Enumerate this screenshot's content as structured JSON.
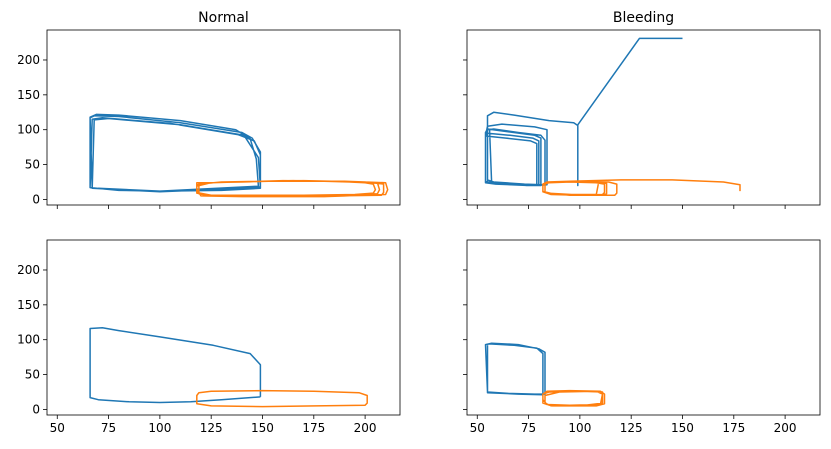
{
  "chart_data": [
    {
      "type": "line",
      "title": "Normal",
      "xlim": [
        45,
        217
      ],
      "ylim": [
        -8,
        243
      ],
      "xticks": [
        50,
        75,
        100,
        125,
        150,
        175,
        200
      ],
      "yticks": [
        0,
        50,
        100,
        150,
        200
      ],
      "show_xtick_labels": false,
      "show_ytick_labels": true,
      "series": [
        {
          "color": "#1f77b4",
          "points": [
            [
              66,
              17
            ],
            [
              66,
              117
            ],
            [
              68,
              120
            ],
            [
              80,
              119
            ],
            [
              110,
              110
            ],
            [
              140,
              96
            ],
            [
              145,
              88
            ],
            [
              149,
              68
            ],
            [
              149,
              16
            ],
            [
              130,
              13
            ],
            [
              100,
              12
            ],
            [
              80,
              13
            ],
            [
              66,
              17
            ],
            [
              67,
              115
            ],
            [
              72,
              117
            ],
            [
              105,
              109
            ],
            [
              138,
              93
            ],
            [
              146,
              84
            ],
            [
              149,
              64
            ],
            [
              149,
              17
            ],
            [
              100,
              11
            ],
            [
              67,
              16
            ],
            [
              68,
              114
            ],
            [
              75,
              116
            ],
            [
              110,
              107
            ],
            [
              141,
              92
            ],
            [
              148,
              60
            ],
            [
              149,
              18
            ],
            [
              100,
              11
            ],
            [
              67,
              16
            ],
            [
              66,
              118
            ],
            [
              69,
              122
            ],
            [
              80,
              121
            ],
            [
              110,
              113
            ],
            [
              137,
              100
            ],
            [
              144,
              87
            ],
            [
              147,
              58
            ],
            [
              148,
              19
            ],
            [
              100,
              12
            ],
            [
              70,
              16
            ]
          ]
        },
        {
          "color": "#ff7f0e",
          "points": [
            [
              118,
              20
            ],
            [
              118,
              24
            ],
            [
              140,
              25
            ],
            [
              165,
              27
            ],
            [
              185,
              26
            ],
            [
              200,
              24
            ],
            [
              204,
              22
            ],
            [
              205,
              14
            ],
            [
              204,
              9
            ],
            [
              195,
              7
            ],
            [
              170,
              6
            ],
            [
              145,
              6
            ],
            [
              125,
              6
            ],
            [
              118,
              10
            ],
            [
              118,
              20
            ],
            [
              120,
              24
            ],
            [
              150,
              26
            ],
            [
              180,
              26
            ],
            [
              206,
              24
            ],
            [
              207,
              14
            ],
            [
              206,
              8
            ],
            [
              190,
              6
            ],
            [
              150,
              5
            ],
            [
              125,
              5
            ],
            [
              119,
              8
            ],
            [
              119,
              22
            ],
            [
              130,
              25
            ],
            [
              170,
              27
            ],
            [
              200,
              25
            ],
            [
              209,
              22
            ],
            [
              209,
              10
            ],
            [
              208,
              6
            ],
            [
              185,
              5
            ],
            [
              150,
              4
            ],
            [
              125,
              5
            ],
            [
              118,
              9
            ],
            [
              118,
              19
            ],
            [
              125,
              24
            ],
            [
              160,
              27
            ],
            [
              190,
              26
            ],
            [
              210,
              24
            ],
            [
              211,
              14
            ],
            [
              210,
              7
            ],
            [
              180,
              4
            ],
            [
              140,
              4
            ],
            [
              120,
              5
            ],
            [
              118,
              15
            ]
          ]
        }
      ]
    },
    {
      "type": "line",
      "title": "Bleeding",
      "xlim": [
        45,
        217
      ],
      "ylim": [
        -8,
        243
      ],
      "xticks": [
        50,
        75,
        100,
        125,
        150,
        175,
        200
      ],
      "yticks": [
        0,
        50,
        100,
        150,
        200
      ],
      "show_xtick_labels": false,
      "show_ytick_labels": false,
      "series": [
        {
          "color": "#1f77b4",
          "points": [
            [
              150,
              231
            ],
            [
              150,
              231
            ],
            [
              129,
              231
            ],
            [
              99,
              107
            ],
            [
              99,
              20
            ],
            [
              99,
              106
            ],
            [
              97,
              110
            ],
            [
              85,
              113
            ],
            [
              68,
              121
            ],
            [
              58,
              125
            ],
            [
              55,
              120
            ],
            [
              55,
              28
            ],
            [
              58,
              25
            ],
            [
              73,
              22
            ],
            [
              82,
              21
            ],
            [
              83,
              22
            ],
            [
              83,
              85
            ],
            [
              81,
              92
            ],
            [
              70,
              96
            ],
            [
              58,
              101
            ],
            [
              55,
              100
            ],
            [
              55,
              25
            ],
            [
              60,
              24
            ],
            [
              74,
              20
            ],
            [
              81,
              20
            ],
            [
              81,
              88
            ],
            [
              78,
              92
            ],
            [
              65,
              97
            ],
            [
              55,
              101
            ],
            [
              54,
              96
            ],
            [
              54,
              26
            ],
            [
              57,
              23
            ],
            [
              72,
              21
            ],
            [
              80,
              20
            ],
            [
              80,
              84
            ],
            [
              77,
              88
            ],
            [
              66,
              92
            ],
            [
              55,
              95
            ],
            [
              54,
              92
            ],
            [
              54,
              24
            ],
            [
              59,
              22
            ],
            [
              75,
              20
            ],
            [
              79,
              20
            ],
            [
              79,
              80
            ],
            [
              76,
              84
            ],
            [
              64,
              88
            ],
            [
              54,
              91
            ],
            [
              55,
              105
            ],
            [
              62,
              108
            ],
            [
              78,
              104
            ],
            [
              84,
              100
            ],
            [
              84,
              21
            ],
            [
              79,
              20
            ],
            [
              57,
              25
            ],
            [
              56,
              99
            ]
          ]
        },
        {
          "color": "#ff7f0e",
          "points": [
            [
              178,
              12
            ],
            [
              178,
              21
            ],
            [
              170,
              25
            ],
            [
              145,
              28
            ],
            [
              120,
              28
            ],
            [
              95,
              26
            ],
            [
              84,
              25
            ],
            [
              82,
              22
            ],
            [
              82,
              12
            ],
            [
              85,
              8
            ],
            [
              95,
              6
            ],
            [
              110,
              6
            ],
            [
              113,
              8
            ],
            [
              113,
              23
            ],
            [
              110,
              25
            ],
            [
              95,
              26
            ],
            [
              85,
              25
            ],
            [
              83,
              22
            ],
            [
              83,
              11
            ],
            [
              88,
              7
            ],
            [
              100,
              6
            ],
            [
              117,
              6
            ],
            [
              118,
              9
            ],
            [
              118,
              22
            ],
            [
              114,
              25
            ],
            [
              100,
              26
            ],
            [
              86,
              25
            ],
            [
              82,
              22
            ],
            [
              82,
              11
            ],
            [
              86,
              7
            ],
            [
              100,
              6
            ],
            [
              111,
              7
            ],
            [
              112,
              10
            ],
            [
              112,
              22
            ],
            [
              108,
              24
            ],
            [
              95,
              25
            ],
            [
              85,
              24
            ],
            [
              82,
              21
            ],
            [
              82,
              12
            ],
            [
              84,
              9
            ],
            [
              96,
              7
            ],
            [
              108,
              7
            ],
            [
              109,
              22
            ]
          ]
        }
      ]
    },
    {
      "type": "line",
      "title": "",
      "xlim": [
        45,
        217
      ],
      "ylim": [
        -8,
        243
      ],
      "xticks": [
        50,
        75,
        100,
        125,
        150,
        175,
        200
      ],
      "yticks": [
        0,
        50,
        100,
        150,
        200
      ],
      "show_xtick_labels": true,
      "show_ytick_labels": true,
      "series": [
        {
          "color": "#1f77b4",
          "points": [
            [
              149,
              18
            ],
            [
              149,
              64
            ],
            [
              144,
              80
            ],
            [
              126,
              92
            ],
            [
              100,
              104
            ],
            [
              80,
              113
            ],
            [
              72,
              117
            ],
            [
              66,
              116
            ],
            [
              66,
              17
            ],
            [
              70,
              14
            ],
            [
              85,
              11
            ],
            [
              100,
              10
            ],
            [
              115,
              11
            ],
            [
              130,
              14
            ],
            [
              149,
              18
            ]
          ]
        },
        {
          "color": "#ff7f0e",
          "points": [
            [
              176,
              5
            ],
            [
              200,
              6
            ],
            [
              201,
              9
            ],
            [
              201,
              20
            ],
            [
              197,
              24
            ],
            [
              175,
              26
            ],
            [
              150,
              27
            ],
            [
              125,
              26
            ],
            [
              119,
              24
            ],
            [
              118,
              20
            ],
            [
              118,
              8
            ],
            [
              125,
              5
            ],
            [
              150,
              4
            ],
            [
              176,
              5
            ]
          ]
        }
      ]
    },
    {
      "type": "line",
      "title": "",
      "xlim": [
        45,
        217
      ],
      "ylim": [
        -8,
        243
      ],
      "xticks": [
        50,
        75,
        100,
        125,
        150,
        175,
        200
      ],
      "yticks": [
        0,
        50,
        100,
        150,
        200
      ],
      "show_xtick_labels": true,
      "show_ytick_labels": false,
      "series": [
        {
          "color": "#1f77b4",
          "points": [
            [
              54,
              93
            ],
            [
              57,
              95
            ],
            [
              70,
              93
            ],
            [
              80,
              87
            ],
            [
              83,
              82
            ],
            [
              83,
              22
            ],
            [
              78,
              22
            ],
            [
              65,
              23
            ],
            [
              55,
              25
            ],
            [
              54,
              93
            ],
            [
              56,
              94
            ],
            [
              68,
              92
            ],
            [
              79,
              88
            ],
            [
              82,
              80
            ],
            [
              82,
              21
            ],
            [
              70,
              22
            ],
            [
              55,
              24
            ],
            [
              55,
              92
            ]
          ]
        },
        {
          "color": "#ff7f0e",
          "points": [
            [
              82,
              22
            ],
            [
              84,
              26
            ],
            [
              95,
              27
            ],
            [
              110,
              26
            ],
            [
              112,
              22
            ],
            [
              112,
              8
            ],
            [
              108,
              5
            ],
            [
              95,
              5
            ],
            [
              85,
              6
            ],
            [
              82,
              9
            ],
            [
              82,
              22
            ],
            [
              85,
              25
            ],
            [
              100,
              26
            ],
            [
              111,
              25
            ],
            [
              111,
              9
            ],
            [
              100,
              5
            ],
            [
              86,
              5
            ],
            [
              83,
              9
            ],
            [
              83,
              20
            ],
            [
              90,
              25
            ],
            [
              108,
              26
            ],
            [
              111,
              22
            ],
            [
              110,
              7
            ],
            [
              95,
              6
            ],
            [
              84,
              7
            ],
            [
              82,
              14
            ]
          ]
        }
      ]
    }
  ]
}
